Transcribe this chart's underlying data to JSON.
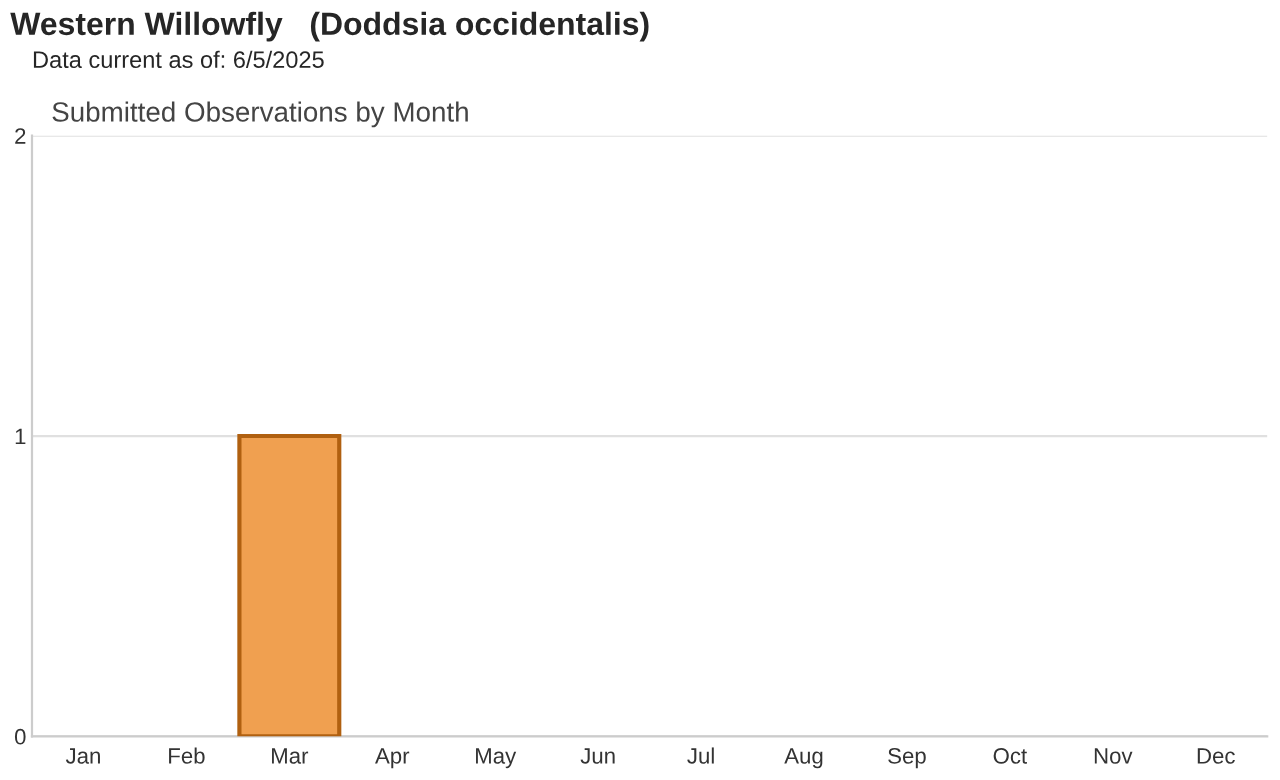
{
  "chart_data": {
    "type": "bar",
    "title": "Western Willowfly   (Doddsia occidentalis)",
    "subtitle": "Data current as of: 6/5/2025",
    "annotations": [
      "Submitted Observations by Month"
    ],
    "categories": [
      "Jan",
      "Feb",
      "Mar",
      "Apr",
      "May",
      "Jun",
      "Jul",
      "Aug",
      "Sep",
      "Oct",
      "Nov",
      "Dec"
    ],
    "values": [
      0,
      0,
      1,
      0,
      0,
      0,
      0,
      0,
      0,
      0,
      0,
      0
    ],
    "color": "#f0a050",
    "ylim": [
      0,
      2
    ],
    "yticks": [
      0,
      1,
      2
    ],
    "grid": "y"
  }
}
